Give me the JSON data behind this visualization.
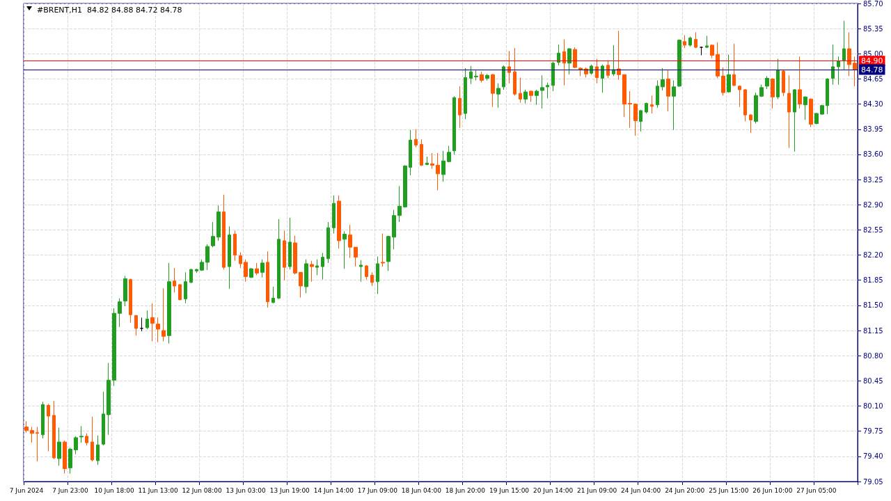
{
  "chart_data": {
    "type": "candlestick",
    "title": "#BRENT,H1  84.82 84.88 84.72 84.78",
    "categories": [
      "7 Jun 2024",
      null,
      null,
      null,
      null,
      null,
      null,
      null,
      "7 Jun 23:00",
      null,
      null,
      null,
      null,
      null,
      null,
      null,
      "10 Jun 18:00",
      null,
      null,
      null,
      null,
      null,
      null,
      null,
      "11 Jun 13:00",
      null,
      null,
      null,
      null,
      null,
      null,
      null,
      "12 Jun 08:00",
      null,
      null,
      null,
      null,
      null,
      null,
      null,
      "13 Jun 03:00",
      null,
      null,
      null,
      null,
      null,
      null,
      null,
      "13 Jun 19:00",
      null,
      null,
      null,
      null,
      null,
      null,
      null,
      "14 Jun 14:00",
      null,
      null,
      null,
      null,
      null,
      null,
      null,
      "17 Jun 09:00",
      null,
      null,
      null,
      null,
      null,
      null,
      null,
      "18 Jun 04:00",
      null,
      null,
      null,
      null,
      null,
      null,
      null,
      "18 Jun 20:00",
      null,
      null,
      null,
      null,
      null,
      null,
      null,
      "19 Jun 15:00",
      null,
      null,
      null,
      null,
      null,
      null,
      null,
      "20 Jun 14:00",
      null,
      null,
      null,
      null,
      null,
      null,
      null,
      "21 Jun 09:00",
      null,
      null,
      null,
      null,
      null,
      null,
      null,
      "24 Jun 04:00",
      null,
      null,
      null,
      null,
      null,
      null,
      null,
      "24 Jun 20:00",
      null,
      null,
      null,
      null,
      null,
      null,
      null,
      "25 Jun 15:00",
      null,
      null,
      null,
      null,
      null,
      null,
      null,
      "26 Jun 10:00",
      null,
      null,
      null,
      null,
      null,
      null,
      null,
      "27 Jun 05:00",
      null,
      null,
      null,
      null,
      null,
      null,
      null
    ],
    "ohlc": [
      [
        79.81,
        79.89,
        79.73,
        79.76
      ],
      [
        79.76,
        79.81,
        79.59,
        79.72
      ],
      [
        79.73,
        79.81,
        79.33,
        79.72
      ],
      [
        79.7,
        80.16,
        79.65,
        80.12
      ],
      [
        80.11,
        80.13,
        79.47,
        79.96
      ],
      [
        79.97,
        80.17,
        79.36,
        79.38
      ],
      [
        79.37,
        79.8,
        79.27,
        79.6
      ],
      [
        79.6,
        79.62,
        79.16,
        79.23
      ],
      [
        79.24,
        79.52,
        79.16,
        79.5
      ],
      [
        79.49,
        79.68,
        79.43,
        79.66
      ],
      [
        79.67,
        79.82,
        79.59,
        79.68
      ],
      [
        79.68,
        79.72,
        79.55,
        79.59
      ],
      [
        79.6,
        79.95,
        79.33,
        79.35
      ],
      [
        79.34,
        79.69,
        79.28,
        79.56
      ],
      [
        79.57,
        80.3,
        79.55,
        79.99
      ],
      [
        79.98,
        80.7,
        79.7,
        80.46
      ],
      [
        80.46,
        81.46,
        80.38,
        81.39
      ],
      [
        81.39,
        81.6,
        81.2,
        81.55
      ],
      [
        81.56,
        81.91,
        81.49,
        81.87
      ],
      [
        81.86,
        81.87,
        81.26,
        81.37
      ],
      [
        81.36,
        81.36,
        81.08,
        81.18
      ],
      [
        81.18,
        81.33,
        81.14,
        81.18
      ],
      [
        81.19,
        81.43,
        81.17,
        81.31
      ],
      [
        81.33,
        81.53,
        81.0,
        81.25
      ],
      [
        81.24,
        81.33,
        80.99,
        81.17
      ],
      [
        81.15,
        81.74,
        81.0,
        81.07
      ],
      [
        81.08,
        82.09,
        80.97,
        81.83
      ],
      [
        81.84,
        82.02,
        81.68,
        81.77
      ],
      [
        81.79,
        81.79,
        81.57,
        81.58
      ],
      [
        81.59,
        81.96,
        81.53,
        81.83
      ],
      [
        81.82,
        82.01,
        81.81,
        82.0
      ],
      [
        81.98,
        82.01,
        81.95,
        82.0
      ],
      [
        81.99,
        82.14,
        81.98,
        82.1
      ],
      [
        82.1,
        82.35,
        81.99,
        82.32
      ],
      [
        82.33,
        82.66,
        82.31,
        82.46
      ],
      [
        82.45,
        82.89,
        82.4,
        82.8
      ],
      [
        82.8,
        83.04,
        82.0,
        82.03
      ],
      [
        82.04,
        82.6,
        81.73,
        82.48
      ],
      [
        82.49,
        82.54,
        82.12,
        82.2
      ],
      [
        82.19,
        82.24,
        82.02,
        82.08
      ],
      [
        82.1,
        82.14,
        81.83,
        81.9
      ],
      [
        81.89,
        82.02,
        81.88,
        82.01
      ],
      [
        82.01,
        82.09,
        81.92,
        81.95
      ],
      [
        81.96,
        82.14,
        81.89,
        82.09
      ],
      [
        82.1,
        82.25,
        81.47,
        81.55
      ],
      [
        81.54,
        81.76,
        81.53,
        81.6
      ],
      [
        81.6,
        82.7,
        81.59,
        82.42
      ],
      [
        82.4,
        82.54,
        81.85,
        82.03
      ],
      [
        82.04,
        82.72,
        82.0,
        82.38
      ],
      [
        82.37,
        82.47,
        81.93,
        81.95
      ],
      [
        81.96,
        81.96,
        81.61,
        81.77
      ],
      [
        81.76,
        82.14,
        81.67,
        82.08
      ],
      [
        82.07,
        82.12,
        81.83,
        82.04
      ],
      [
        82.03,
        82.14,
        81.92,
        82.05
      ],
      [
        82.04,
        82.23,
        81.86,
        82.17
      ],
      [
        82.15,
        82.66,
        82.09,
        82.58
      ],
      [
        82.58,
        83.03,
        82.5,
        82.92
      ],
      [
        82.95,
        83.03,
        82.29,
        82.4
      ],
      [
        82.42,
        82.53,
        82.01,
        82.49
      ],
      [
        82.48,
        82.62,
        82.16,
        82.31
      ],
      [
        82.31,
        82.31,
        82.04,
        82.17
      ],
      [
        82.04,
        82.13,
        81.83,
        82.06
      ],
      [
        82.05,
        82.06,
        81.86,
        81.9
      ],
      [
        81.92,
        81.96,
        81.77,
        81.82
      ],
      [
        81.83,
        82.18,
        81.66,
        82.08
      ],
      [
        82.1,
        82.5,
        82.04,
        82.09
      ],
      [
        82.11,
        82.47,
        81.98,
        82.46
      ],
      [
        82.45,
        82.83,
        82.28,
        82.75
      ],
      [
        82.75,
        83.16,
        82.66,
        82.88
      ],
      [
        82.87,
        83.45,
        82.86,
        83.44
      ],
      [
        83.42,
        83.94,
        83.31,
        83.8
      ],
      [
        83.81,
        83.95,
        83.7,
        83.73
      ],
      [
        83.74,
        83.81,
        83.44,
        83.45
      ],
      [
        83.46,
        83.57,
        83.45,
        83.48
      ],
      [
        83.47,
        83.62,
        83.4,
        83.45
      ],
      [
        83.45,
        83.62,
        83.1,
        83.33
      ],
      [
        83.32,
        83.65,
        83.22,
        83.51
      ],
      [
        83.5,
        83.72,
        83.49,
        83.63
      ],
      [
        83.65,
        84.41,
        83.6,
        84.39
      ],
      [
        84.38,
        84.55,
        83.97,
        84.15
      ],
      [
        84.17,
        84.8,
        84.09,
        84.67
      ],
      [
        84.66,
        84.83,
        84.58,
        84.75
      ],
      [
        84.68,
        84.77,
        84.63,
        84.69
      ],
      [
        84.71,
        84.75,
        84.6,
        84.63
      ],
      [
        84.66,
        84.72,
        84.63,
        84.7
      ],
      [
        84.71,
        84.72,
        84.26,
        84.45
      ],
      [
        84.44,
        84.59,
        84.25,
        84.52
      ],
      [
        84.54,
        84.84,
        84.5,
        84.82
      ],
      [
        84.82,
        85.04,
        84.59,
        84.74
      ],
      [
        84.75,
        85.08,
        84.42,
        84.44
      ],
      [
        84.45,
        84.67,
        84.32,
        84.37
      ],
      [
        84.37,
        84.5,
        84.31,
        84.47
      ],
      [
        84.48,
        84.49,
        84.33,
        84.42
      ],
      [
        84.42,
        84.5,
        84.29,
        84.48
      ],
      [
        84.49,
        84.7,
        84.24,
        84.53
      ],
      [
        84.54,
        84.6,
        84.38,
        84.56
      ],
      [
        84.56,
        84.89,
        84.48,
        84.87
      ],
      [
        84.88,
        85.13,
        84.84,
        85.01
      ],
      [
        85.03,
        85.2,
        84.56,
        84.87
      ],
      [
        84.87,
        85.08,
        84.71,
        85.07
      ],
      [
        85.06,
        85.09,
        84.8,
        84.81
      ],
      [
        84.8,
        84.81,
        84.69,
        84.78
      ],
      [
        84.79,
        84.81,
        84.67,
        84.72
      ],
      [
        84.73,
        84.85,
        84.71,
        84.83
      ],
      [
        84.82,
        84.93,
        84.59,
        84.67
      ],
      [
        84.66,
        84.85,
        84.46,
        84.83
      ],
      [
        84.84,
        84.91,
        84.66,
        84.7
      ],
      [
        84.72,
        85.12,
        84.69,
        84.78
      ],
      [
        84.79,
        85.32,
        84.64,
        84.71
      ],
      [
        84.71,
        84.71,
        84.12,
        84.3
      ],
      [
        84.31,
        84.48,
        83.97,
        84.3
      ],
      [
        84.3,
        84.31,
        83.86,
        84.07
      ],
      [
        84.06,
        84.22,
        83.92,
        84.21
      ],
      [
        84.19,
        84.32,
        84.17,
        84.31
      ],
      [
        84.29,
        84.42,
        84.17,
        84.27
      ],
      [
        84.29,
        84.63,
        84.25,
        84.55
      ],
      [
        84.54,
        84.8,
        84.49,
        84.64
      ],
      [
        84.65,
        84.77,
        84.2,
        84.41
      ],
      [
        84.41,
        84.63,
        83.94,
        84.54
      ],
      [
        84.55,
        85.2,
        84.54,
        85.19
      ],
      [
        85.17,
        85.26,
        85.08,
        85.12
      ],
      [
        85.12,
        85.24,
        85.1,
        85.22
      ],
      [
        85.2,
        85.3,
        85.08,
        85.09
      ],
      [
        85.09,
        85.1,
        84.98,
        85.09
      ],
      [
        85.09,
        85.25,
        85.08,
        85.11
      ],
      [
        85.12,
        85.13,
        84.94,
        84.98
      ],
      [
        84.99,
        85.16,
        84.66,
        84.69
      ],
      [
        84.69,
        84.81,
        84.42,
        84.46
      ],
      [
        84.47,
        84.99,
        84.46,
        84.71
      ],
      [
        84.71,
        85.14,
        84.55,
        84.56
      ],
      [
        84.55,
        84.56,
        84.26,
        84.5
      ],
      [
        84.5,
        84.51,
        84.06,
        84.15
      ],
      [
        84.15,
        84.16,
        83.9,
        84.08
      ],
      [
        84.06,
        84.46,
        84.03,
        84.42
      ],
      [
        84.41,
        84.57,
        84.4,
        84.53
      ],
      [
        84.55,
        84.69,
        84.51,
        84.66
      ],
      [
        84.65,
        84.66,
        84.24,
        84.4
      ],
      [
        84.4,
        84.93,
        84.37,
        84.77
      ],
      [
        84.76,
        84.77,
        84.41,
        84.46
      ],
      [
        84.45,
        84.7,
        83.69,
        84.19
      ],
      [
        84.19,
        84.51,
        83.64,
        84.5
      ],
      [
        84.5,
        84.96,
        84.24,
        84.3
      ],
      [
        84.29,
        84.41,
        84.08,
        84.4
      ],
      [
        84.37,
        84.38,
        83.98,
        84.02
      ],
      [
        84.03,
        84.18,
        84.02,
        84.17
      ],
      [
        84.16,
        84.29,
        84.15,
        84.28
      ],
      [
        84.28,
        84.66,
        84.16,
        84.65
      ],
      [
        84.66,
        85.13,
        84.57,
        84.82
      ],
      [
        84.82,
        84.96,
        84.57,
        84.9
      ],
      [
        84.9,
        85.46,
        84.78,
        85.07
      ],
      [
        85.07,
        85.3,
        84.69,
        84.85
      ],
      [
        84.87,
        84.96,
        84.55,
        84.78
      ]
    ],
    "colors": [
      "#ff5a00",
      "#ff5a00",
      "#ff5a00",
      "#1f9e1f",
      "#ff5a00",
      "#ff5a00",
      "#1f9e1f",
      "#ff5a00",
      "#1f9e1f",
      "#1f9e1f",
      "#1f9e1f",
      "#ff5a00",
      "#ff5a00",
      "#1f9e1f",
      "#1f9e1f",
      "#1f9e1f",
      "#1f9e1f",
      "#1f9e1f",
      "#1f9e1f",
      "#ff5a00",
      "#ff5a00",
      "#000000",
      "#1f9e1f",
      "#ff5a00",
      "#ff5a00",
      "#ff5a00",
      "#1f9e1f",
      "#ff5a00",
      "#ff5a00",
      "#1f9e1f",
      "#1f9e1f",
      "#1f9e1f",
      "#1f9e1f",
      "#1f9e1f",
      "#1f9e1f",
      "#1f9e1f",
      "#ff5a00",
      "#1f9e1f",
      "#ff5a00",
      "#ff5a00",
      "#ff5a00",
      "#1f9e1f",
      "#ff5a00",
      "#1f9e1f",
      "#ff5a00",
      "#1f9e1f",
      "#1f9e1f",
      "#ff5a00",
      "#1f9e1f",
      "#ff5a00",
      "#ff5a00",
      "#1f9e1f",
      "#ff5a00",
      "#1f9e1f",
      "#1f9e1f",
      "#1f9e1f",
      "#1f9e1f",
      "#ff5a00",
      "#1f9e1f",
      "#ff5a00",
      "#ff5a00",
      "#1f9e1f",
      "#ff5a00",
      "#ff5a00",
      "#1f9e1f",
      "#ff5a00",
      "#1f9e1f",
      "#1f9e1f",
      "#1f9e1f",
      "#1f9e1f",
      "#1f9e1f",
      "#ff5a00",
      "#ff5a00",
      "#1f9e1f",
      "#ff5a00",
      "#ff5a00",
      "#1f9e1f",
      "#1f9e1f",
      "#1f9e1f",
      "#ff5a00",
      "#1f9e1f",
      "#1f9e1f",
      "#1f9e1f",
      "#ff5a00",
      "#1f9e1f",
      "#ff5a00",
      "#1f9e1f",
      "#1f9e1f",
      "#ff5a00",
      "#ff5a00",
      "#ff5a00",
      "#1f9e1f",
      "#ff5a00",
      "#1f9e1f",
      "#1f9e1f",
      "#1f9e1f",
      "#1f9e1f",
      "#1f9e1f",
      "#ff5a00",
      "#1f9e1f",
      "#ff5a00",
      "#ff5a00",
      "#ff5a00",
      "#1f9e1f",
      "#ff5a00",
      "#1f9e1f",
      "#ff5a00",
      "#1f9e1f",
      "#ff5a00",
      "#ff5a00",
      "#ff5a00",
      "#ff5a00",
      "#1f9e1f",
      "#1f9e1f",
      "#ff5a00",
      "#1f9e1f",
      "#1f9e1f",
      "#ff5a00",
      "#1f9e1f",
      "#1f9e1f",
      "#ff5a00",
      "#1f9e1f",
      "#ff5a00",
      "#000000",
      "#1f9e1f",
      "#ff5a00",
      "#ff5a00",
      "#ff5a00",
      "#1f9e1f",
      "#ff5a00",
      "#ff5a00",
      "#ff5a00",
      "#ff5a00",
      "#1f9e1f",
      "#1f9e1f",
      "#1f9e1f",
      "#ff5a00",
      "#1f9e1f",
      "#ff5a00",
      "#ff5a00",
      "#1f9e1f",
      "#ff5a00",
      "#1f9e1f",
      "#ff5a00",
      "#1f9e1f",
      "#1f9e1f",
      "#1f9e1f",
      "#1f9e1f",
      "#1f9e1f",
      "#1f9e1f",
      "#ff5a00",
      "#ff5a00"
    ],
    "ylim": [
      79.05,
      85.7
    ],
    "yticks": [
      79.05,
      {
        "value": 79.4,
        "label": "79.40"
      },
      79.75,
      {
        "value": 80.1,
        "label": "80.10"
      },
      80.45,
      {
        "value": 80.8,
        "label": "80.80"
      },
      81.15,
      {
        "value": 81.5,
        "label": "81.50"
      },
      81.85,
      {
        "value": 82.2,
        "label": "82.20"
      },
      82.55,
      {
        "value": 82.9,
        "label": "82.90"
      },
      83.25,
      {
        "value": 83.6,
        "label": "83.60"
      },
      83.95,
      {
        "value": 84.3,
        "label": "84.30"
      },
      84.65,
      {
        "value": 85.0,
        "label": "85.00"
      },
      85.35,
      {
        "value": 85.7,
        "label": "85.70"
      }
    ],
    "grid": true,
    "ref_lines": [
      {
        "axis": "y",
        "value": 84.9,
        "label": "84.90",
        "color": "#ff0000"
      },
      {
        "axis": "y",
        "value": 84.78,
        "label": "84.78",
        "color": "#000080"
      }
    ]
  }
}
